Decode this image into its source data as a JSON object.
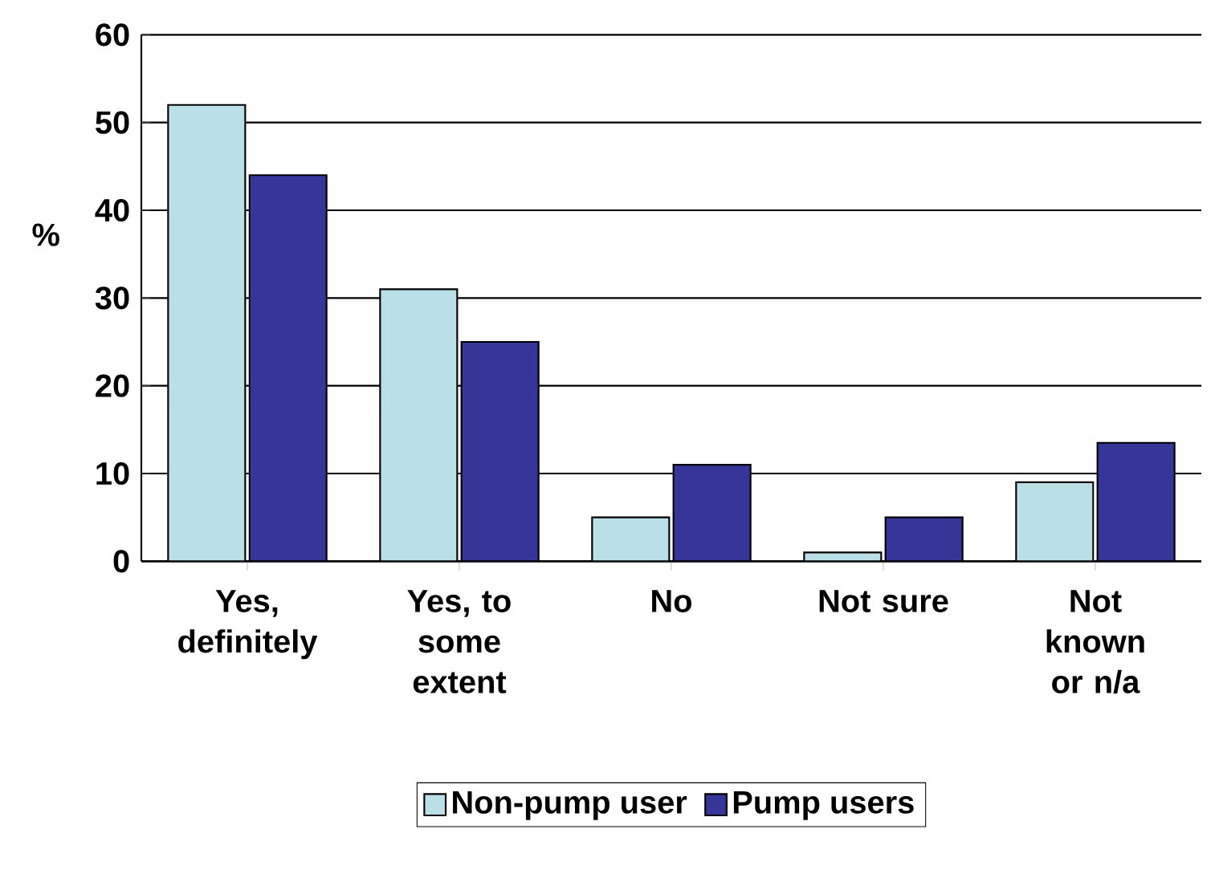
{
  "chart_data": {
    "type": "bar",
    "ylabel": "%",
    "categories": [
      "Yes, definitely",
      "Yes, to some extent",
      "No",
      "Not sure",
      "Not known or n/a"
    ],
    "series": [
      {
        "name": "Non-pump user",
        "color": "#bbdfe6",
        "values": [
          52,
          31,
          5,
          1,
          9
        ]
      },
      {
        "name": "Pump users",
        "color": "#363699",
        "values": [
          44,
          25,
          11,
          5,
          13.5
        ]
      }
    ],
    "ylim": [
      0,
      60
    ],
    "yticks": [
      0,
      10,
      20,
      30,
      40,
      50,
      60
    ],
    "grid": "y",
    "legend": "bottom"
  }
}
